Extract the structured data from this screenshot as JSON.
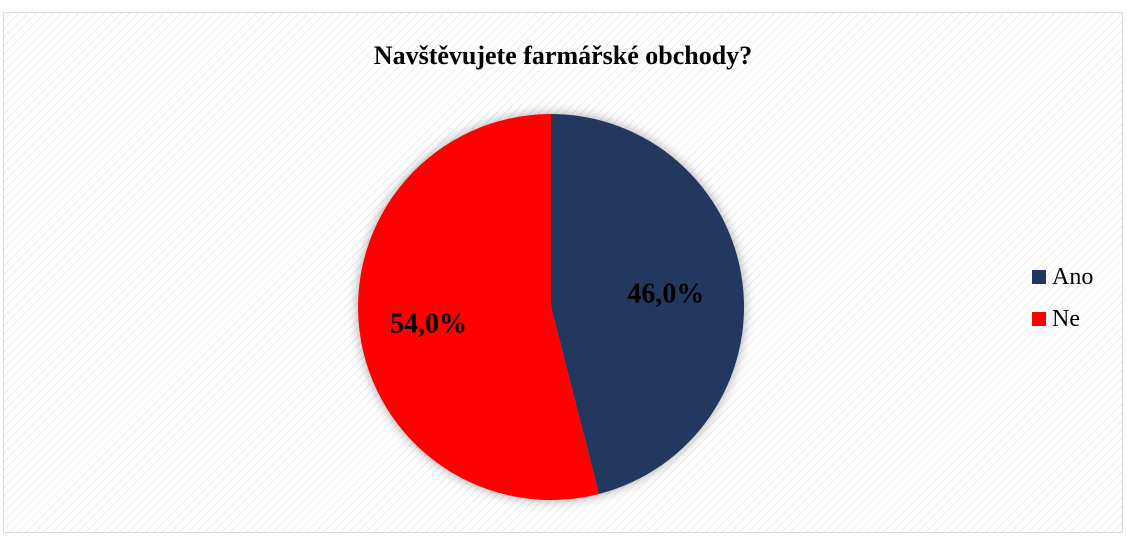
{
  "chart_data": {
    "type": "pie",
    "title": "Navštěvujete farmářské obchody?",
    "categories": [
      "Ano",
      "Ne"
    ],
    "values": [
      46.0,
      54.0
    ],
    "data_labels": [
      "46,0%",
      "54,0%"
    ],
    "colors": [
      "#22375f",
      "#ff0000"
    ],
    "legend_position": "right"
  }
}
